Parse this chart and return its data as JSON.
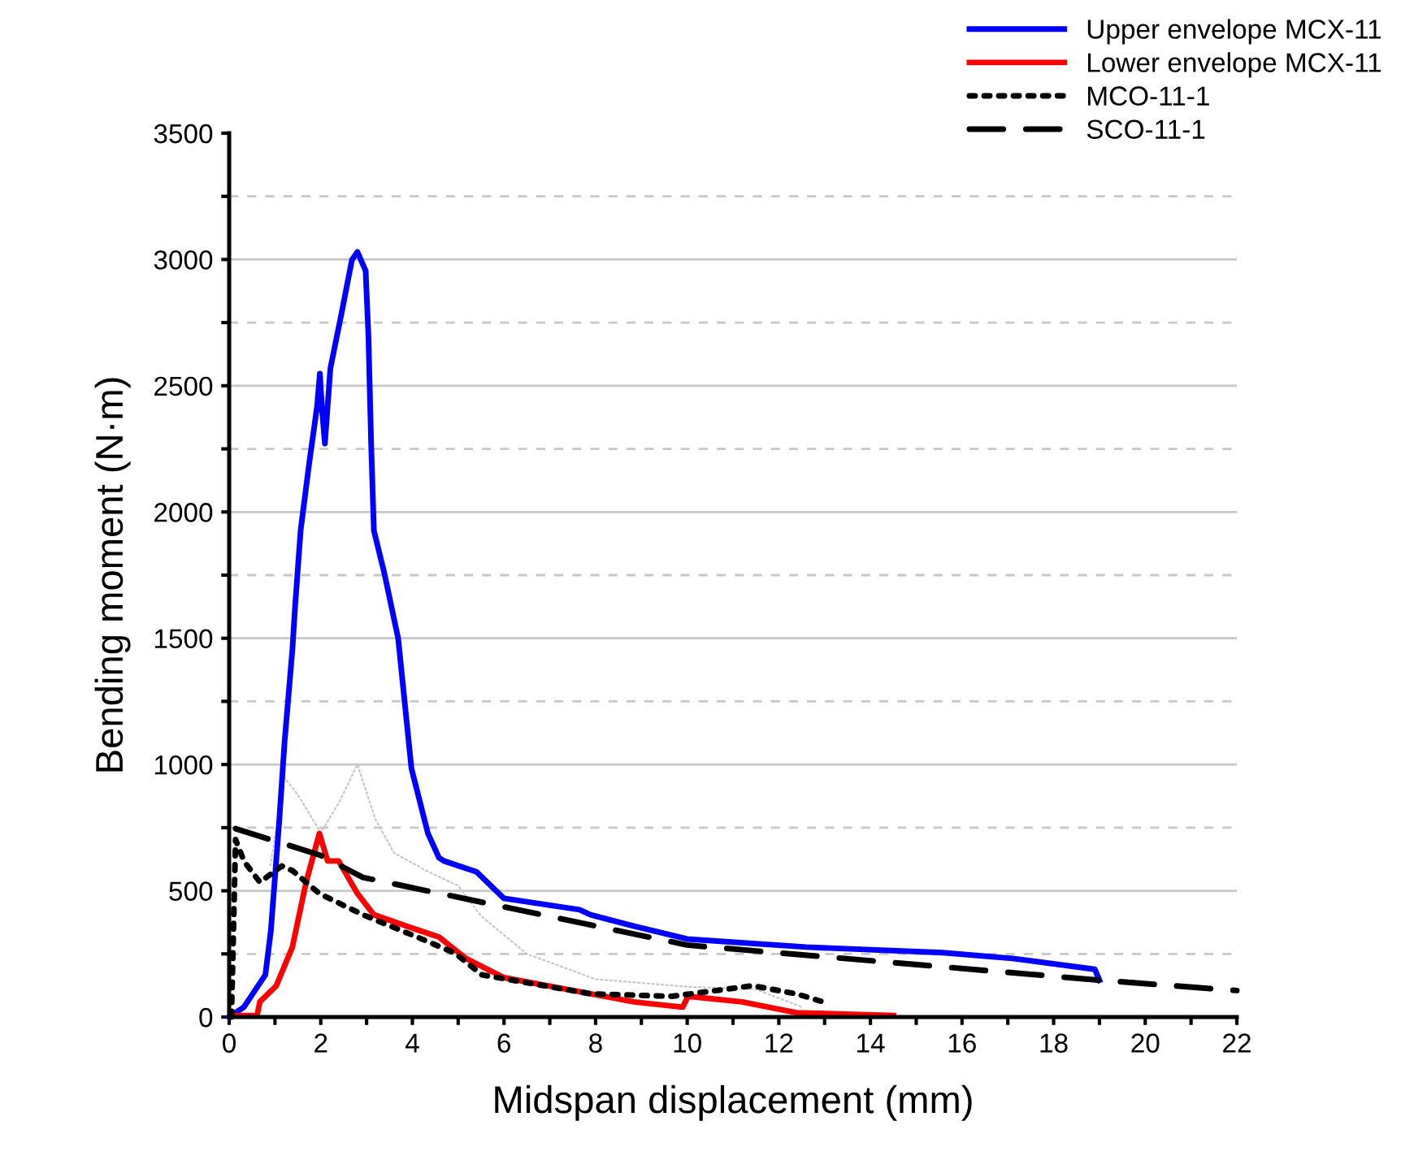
{
  "chart_data": {
    "type": "line",
    "xlabel": "Midspan displacement (mm)",
    "ylabel": "Bending moment (N·m)",
    "xlim": [
      0,
      22
    ],
    "ylim": [
      0,
      3500
    ],
    "xticks": [
      0,
      {
        "value": 1,
        "label": null
      },
      2,
      {
        "value": 3,
        "label": null
      },
      4,
      {
        "value": 5,
        "label": null
      },
      6,
      {
        "value": 7,
        "label": null
      },
      8,
      {
        "value": 9,
        "label": null
      },
      10,
      {
        "value": 11,
        "label": null
      },
      12,
      {
        "value": 13,
        "label": null
      },
      14,
      {
        "value": 15,
        "label": null
      },
      16,
      {
        "value": 17,
        "label": null
      },
      18,
      {
        "value": 19,
        "label": null
      },
      20,
      {
        "value": 21,
        "label": null
      },
      22
    ],
    "yticks": [
      0,
      {
        "value": 250,
        "label": null
      },
      500,
      {
        "value": 750,
        "label": null
      },
      1000,
      {
        "value": 1250,
        "label": null
      },
      1500,
      {
        "value": 1750,
        "label": null
      },
      2000,
      {
        "value": 2250,
        "label": null
      },
      2500,
      {
        "value": 2750,
        "label": null
      },
      3000,
      {
        "value": 3250,
        "label": null
      },
      3500
    ],
    "grid": "y",
    "legend": "top right",
    "series": [
      {
        "name": null,
        "color": "#c8c8c8",
        "line_style": "dotted",
        "x": [
          0.9,
          1.2,
          1.5,
          2.0,
          2.4,
          2.8,
          3.2,
          3.6,
          4.3,
          5.0,
          5.5,
          6.5,
          8,
          10,
          11.5,
          12.5
        ],
        "values": [
          600,
          950,
          880,
          730,
          850,
          1000,
          780,
          650,
          580,
          520,
          400,
          250,
          150,
          120,
          110,
          40
        ]
      },
      {
        "name": "Upper envelope MCX-11",
        "color": "#0000ff",
        "line_style": "solid",
        "x": [
          0,
          0.32,
          0.79,
          0.91,
          1.09,
          1.21,
          1.38,
          1.44,
          1.56,
          1.74,
          1.92,
          1.98,
          2.03,
          2.09,
          2.21,
          2.45,
          2.68,
          2.8,
          2.98,
          3.04,
          3.1,
          3.16,
          3.39,
          3.69,
          3.98,
          4.34,
          4.58,
          4.69,
          5.4,
          6.0,
          7.65,
          7.89,
          8.84,
          10.0,
          12.6,
          15.58,
          17.1,
          18.9,
          19.0
        ],
        "values": [
          0,
          39,
          167,
          341,
          768,
          1090,
          1454,
          1627,
          1926,
          2183,
          2419,
          2548,
          2400,
          2271,
          2569,
          2784,
          2998,
          3030,
          2955,
          2698,
          2271,
          1926,
          1756,
          1499,
          984,
          727,
          631,
          618,
          575,
          470,
          425,
          405,
          360,
          309,
          277,
          255,
          232,
          189,
          146
        ]
      },
      {
        "name": "Lower envelope MCX-11",
        "color": "#ff0000",
        "line_style": "solid",
        "x": [
          0.08,
          0.61,
          0.67,
          1.03,
          1.38,
          1.68,
          1.97,
          2.15,
          2.39,
          2.8,
          3.16,
          3.87,
          4.58,
          5.17,
          6.0,
          7.89,
          8.84,
          9.9,
          10.02,
          11.2,
          12.38,
          14.5
        ],
        "values": [
          6,
          6,
          60,
          124,
          277,
          534,
          727,
          618,
          618,
          489,
          405,
          360,
          317,
          232,
          156,
          92,
          60,
          39,
          82,
          60,
          17,
          6
        ]
      },
      {
        "name": "MCO-11-1",
        "color": "#000000",
        "line_style": "dotted",
        "x": [
          0.05,
          0.14,
          0.32,
          0.67,
          1.15,
          1.38,
          1.97,
          2.92,
          4.1,
          4.93,
          5.52,
          7.89,
          9.66,
          11.43,
          12.38,
          12.97
        ],
        "values": [
          0,
          703,
          618,
          534,
          598,
          580,
          489,
          405,
          317,
          253,
          167,
          92,
          82,
          124,
          92,
          60
        ]
      },
      {
        "name": "SCO-11-1",
        "color": "#000000",
        "line_style": "dashed",
        "x": [
          0.14,
          2.0,
          2.92,
          6.3,
          10,
          15.5,
          19.0,
          22
        ],
        "values": [
          746,
          640,
          553,
          425,
          285,
          200,
          146,
          105
        ]
      }
    ]
  }
}
